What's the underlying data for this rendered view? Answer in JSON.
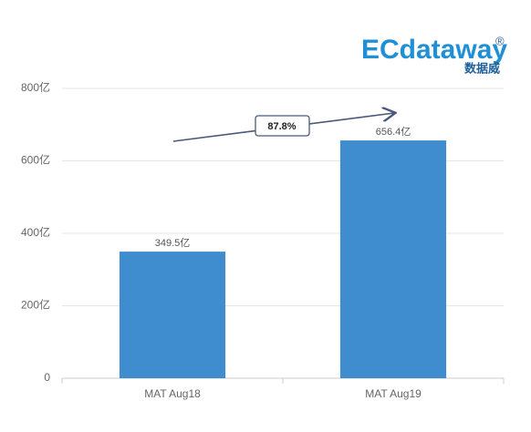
{
  "chart_data": {
    "type": "bar",
    "logo": {
      "text": "ECdataway",
      "mark": "®",
      "subtitle": "数据威"
    },
    "categories": [
      "MAT Aug18",
      "MAT Aug19"
    ],
    "values": [
      349.5,
      656.4
    ],
    "value_labels": [
      "349.5亿",
      "656.4亿"
    ],
    "color": "#3f8dce",
    "ylim": [
      0,
      800
    ],
    "yticks": [
      0,
      {
        "value": 200,
        "label": "200亿"
      },
      {
        "value": 400,
        "label": "400亿"
      },
      {
        "value": 600,
        "label": "600亿"
      },
      {
        "value": 800,
        "label": "800亿"
      }
    ],
    "grid": true,
    "annotation": "87.8%"
  }
}
